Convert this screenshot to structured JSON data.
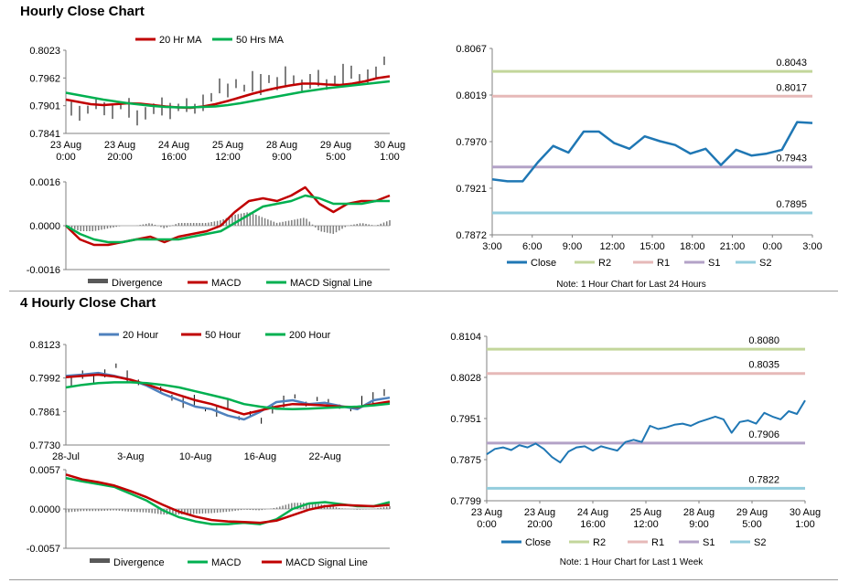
{
  "sections": [
    {
      "title": "Hourly Close Chart"
    },
    {
      "title": "4 Hourly Close Chart"
    }
  ],
  "chart_data": [
    {
      "id": "hourly_ma",
      "type": "line",
      "legend": [
        "20 Hr MA",
        "50 Hrs MA"
      ],
      "y_ticks": [
        "0.8023",
        "0.7962",
        "0.7901",
        "0.7841"
      ],
      "ylim": [
        0.7841,
        0.8023
      ],
      "x_ticks": [
        "23 Aug\n0:00",
        "23 Aug\n20:00",
        "24 Aug\n16:00",
        "25 Aug\n12:00",
        "28 Aug\n9:00",
        "29 Aug\n5:00",
        "30 Aug\n1:00"
      ],
      "series": [
        {
          "name": "20 Hr MA",
          "color": "#c00000",
          "values": [
            0.7915,
            0.791,
            0.7905,
            0.7903,
            0.7905,
            0.7907,
            0.7906,
            0.7903,
            0.79,
            0.7898,
            0.7897,
            0.79,
            0.7905,
            0.7912,
            0.792,
            0.7928,
            0.7935,
            0.7941,
            0.7946,
            0.795,
            0.795,
            0.7948,
            0.7947,
            0.795,
            0.7955,
            0.7962,
            0.7966
          ]
        },
        {
          "name": "50 Hrs MA",
          "color": "#00b050",
          "values": [
            0.793,
            0.7925,
            0.792,
            0.7915,
            0.7911,
            0.7907,
            0.7904,
            0.7901,
            0.7899,
            0.7898,
            0.7898,
            0.7899,
            0.79,
            0.7903,
            0.7907,
            0.7912,
            0.7917,
            0.7922,
            0.7927,
            0.7932,
            0.7936,
            0.794,
            0.7943,
            0.7946,
            0.7949,
            0.7952,
            0.7955
          ]
        }
      ],
      "price_bars": [
        0.7895,
        0.7885,
        0.7893,
        0.7905,
        0.7895,
        0.7888,
        0.7902,
        0.7897,
        0.7875,
        0.7885,
        0.7895,
        0.79,
        0.789,
        0.7898,
        0.7903,
        0.7895,
        0.7908,
        0.792,
        0.7945,
        0.7935,
        0.795,
        0.794,
        0.7955,
        0.7948,
        0.796,
        0.795,
        0.7965,
        0.7958,
        0.7945,
        0.7955,
        0.7962,
        0.7948,
        0.7958,
        0.797,
        0.7975,
        0.796,
        0.7965,
        0.7975,
        0.8
      ]
    },
    {
      "id": "hourly_macd",
      "type": "line",
      "legend": [
        "Divergence",
        "MACD",
        "MACD Signal Line"
      ],
      "y_ticks": [
        "0.0016",
        "0.0000",
        "-0.0016"
      ],
      "ylim": [
        -0.0016,
        0.0016
      ],
      "series": [
        {
          "name": "MACD",
          "color": "#c00000",
          "values": [
            0.0,
            -0.0005,
            -0.0007,
            -0.0007,
            -0.0006,
            -0.0005,
            -0.0004,
            -0.0006,
            -0.0004,
            -0.0003,
            -0.0002,
            0.0,
            0.0005,
            0.0009,
            0.001,
            0.0009,
            0.0011,
            0.0014,
            0.0008,
            0.0005,
            0.0008,
            0.0009,
            0.0009,
            0.0011
          ]
        },
        {
          "name": "MACD Signal Line",
          "color": "#00b050",
          "values": [
            0.0,
            -0.0003,
            -0.0005,
            -0.0006,
            -0.0006,
            -0.0005,
            -0.0005,
            -0.0005,
            -0.0005,
            -0.0004,
            -0.0003,
            -0.0002,
            0.0001,
            0.0004,
            0.0007,
            0.0008,
            0.0009,
            0.0011,
            0.001,
            0.0008,
            0.0008,
            0.0008,
            0.0009,
            0.0009
          ]
        }
      ],
      "divergence": [
        0.0,
        -0.0002,
        -0.0002,
        -0.0001,
        0.0,
        0.0,
        0.0001,
        -0.0001,
        0.0001,
        0.0001,
        0.0001,
        0.0002,
        0.0004,
        0.0005,
        0.0003,
        0.0001,
        0.0002,
        0.0003,
        -0.0002,
        -0.0003,
        0.0,
        0.0001,
        0.0,
        0.0002
      ]
    },
    {
      "id": "hourly_close",
      "type": "line",
      "legend": [
        "Close",
        "R2",
        "R1",
        "S1",
        "S2"
      ],
      "y_ticks": [
        "0.8067",
        "0.8019",
        "0.7970",
        "0.7921",
        "0.7872"
      ],
      "ylim": [
        0.7872,
        0.8067
      ],
      "x_ticks": [
        "3:00",
        "6:00",
        "9:00",
        "12:00",
        "15:00",
        "18:00",
        "21:00",
        "0:00",
        "3:00"
      ],
      "levels": [
        {
          "name": "R2",
          "value": 0.8043,
          "label": "0.8043",
          "color": "#c3d69b"
        },
        {
          "name": "R1",
          "value": 0.8017,
          "label": "0.8017",
          "color": "#e6b9b8"
        },
        {
          "name": "S1",
          "value": 0.7943,
          "label": "0.7943",
          "color": "#b3a2c7"
        },
        {
          "name": "S2",
          "value": 0.7895,
          "label": "0.7895",
          "color": "#93cddd"
        }
      ],
      "close": [
        0.793,
        0.7928,
        0.7928,
        0.7948,
        0.7965,
        0.7958,
        0.798,
        0.798,
        0.7968,
        0.7962,
        0.7975,
        0.797,
        0.7966,
        0.7957,
        0.7962,
        0.7945,
        0.7961,
        0.7955,
        0.7957,
        0.7961,
        0.799,
        0.7989
      ],
      "note": "Note: 1 Hour Chart for Last 24 Hours"
    },
    {
      "id": "four_hour_ma",
      "type": "line",
      "legend": [
        "20 Hour",
        "50 Hour",
        "200 Hour"
      ],
      "y_ticks": [
        "0.8123",
        "0.7992",
        "0.7861",
        "0.7730"
      ],
      "ylim": [
        0.773,
        0.8123
      ],
      "x_ticks": [
        "28-Jul",
        "3-Aug",
        "10-Aug",
        "16-Aug",
        "22-Aug"
      ],
      "series": [
        {
          "name": "20 Hour",
          "color": "#4f81bd",
          "values": [
            0.8,
            0.8005,
            0.8012,
            0.8,
            0.7985,
            0.7962,
            0.793,
            0.7905,
            0.788,
            0.787,
            0.7845,
            0.783,
            0.786,
            0.7898,
            0.7905,
            0.789,
            0.7895,
            0.7882,
            0.787,
            0.7905,
            0.7915
          ]
        },
        {
          "name": "50 Hour",
          "color": "#c00000",
          "values": [
            0.7995,
            0.8,
            0.8005,
            0.7998,
            0.7985,
            0.7967,
            0.7945,
            0.7925,
            0.7905,
            0.789,
            0.787,
            0.785,
            0.7865,
            0.788,
            0.789,
            0.7888,
            0.7885,
            0.788,
            0.7878,
            0.789,
            0.79
          ]
        },
        {
          "name": "200 Hour",
          "color": "#00b050",
          "values": [
            0.7955,
            0.7965,
            0.7972,
            0.7975,
            0.7975,
            0.7972,
            0.7965,
            0.7955,
            0.794,
            0.7925,
            0.791,
            0.789,
            0.788,
            0.7872,
            0.787,
            0.7872,
            0.7875,
            0.7878,
            0.788,
            0.7885,
            0.7892
          ]
        }
      ],
      "price_bars": [
        0.798,
        0.8005,
        0.799,
        0.801,
        0.804,
        0.8,
        0.7975,
        0.7965,
        0.7945,
        0.7915,
        0.7895,
        0.7905,
        0.787,
        0.786,
        0.789,
        0.7835,
        0.785,
        0.7825,
        0.787,
        0.79,
        0.792,
        0.789,
        0.791,
        0.7895,
        0.788,
        0.787,
        0.79,
        0.7915,
        0.7935
      ]
    },
    {
      "id": "four_hour_macd",
      "type": "line",
      "legend": [
        "Divergence",
        "MACD",
        "MACD Signal Line"
      ],
      "y_ticks": [
        "0.0057",
        "0.0000",
        "-0.0057"
      ],
      "ylim": [
        -0.0057,
        0.0057
      ],
      "series": [
        {
          "name": "MACD",
          "color": "#00b050",
          "values": [
            0.0045,
            0.004,
            0.0036,
            0.0032,
            0.0022,
            0.0012,
            -0.0002,
            -0.0012,
            -0.0018,
            -0.0022,
            -0.0022,
            -0.002,
            -0.0022,
            -0.0015,
            0.0,
            0.0008,
            0.001,
            0.0007,
            0.0004,
            0.0004,
            0.001
          ]
        },
        {
          "name": "MACD Signal Line",
          "color": "#c00000",
          "values": [
            0.005,
            0.0043,
            0.0039,
            0.0034,
            0.0026,
            0.0017,
            0.0006,
            -0.0004,
            -0.0011,
            -0.0016,
            -0.0018,
            -0.0019,
            -0.002,
            -0.0017,
            -0.0009,
            -0.0001,
            0.0004,
            0.0006,
            0.0005,
            0.0004,
            0.0006
          ]
        }
      ],
      "divergence": [
        -0.0005,
        -0.0003,
        -0.0003,
        -0.0002,
        -0.0004,
        -0.0005,
        -0.0008,
        -0.0008,
        -0.0007,
        -0.0006,
        -0.0004,
        -0.0001,
        -0.0002,
        0.0002,
        0.0009,
        0.0009,
        0.0006,
        0.0001,
        -0.0001,
        0.0,
        0.0004
      ]
    },
    {
      "id": "four_hour_close",
      "type": "line",
      "legend": [
        "Close",
        "R2",
        "R1",
        "S1",
        "S2"
      ],
      "y_ticks": [
        "0.8104",
        "0.8028",
        "0.7951",
        "0.7875",
        "0.7799"
      ],
      "ylim": [
        0.7799,
        0.8104
      ],
      "x_ticks": [
        "23 Aug\n0:00",
        "23 Aug\n20:00",
        "24 Aug\n16:00",
        "25 Aug\n12:00",
        "28 Aug\n9:00",
        "29 Aug\n5:00",
        "30 Aug\n1:00"
      ],
      "levels": [
        {
          "name": "R2",
          "value": 0.808,
          "label": "0.8080",
          "color": "#c3d69b"
        },
        {
          "name": "R1",
          "value": 0.8035,
          "label": "0.8035",
          "color": "#e6b9b8"
        },
        {
          "name": "S1",
          "value": 0.7906,
          "label": "0.7906",
          "color": "#b3a2c7"
        },
        {
          "name": "S2",
          "value": 0.7822,
          "label": "0.7822",
          "color": "#93cddd"
        }
      ],
      "close": [
        0.7885,
        0.7895,
        0.7898,
        0.7893,
        0.7902,
        0.7898,
        0.7905,
        0.7895,
        0.788,
        0.787,
        0.789,
        0.7898,
        0.79,
        0.7892,
        0.79,
        0.7896,
        0.7892,
        0.7908,
        0.7912,
        0.7908,
        0.7938,
        0.7932,
        0.7935,
        0.794,
        0.7942,
        0.7938,
        0.7945,
        0.795,
        0.7955,
        0.795,
        0.7925,
        0.7945,
        0.7948,
        0.7942,
        0.7962,
        0.7955,
        0.795,
        0.7965,
        0.796,
        0.7985
      ],
      "note": "Note: 1 Hour Chart for Last 1 Week"
    }
  ]
}
